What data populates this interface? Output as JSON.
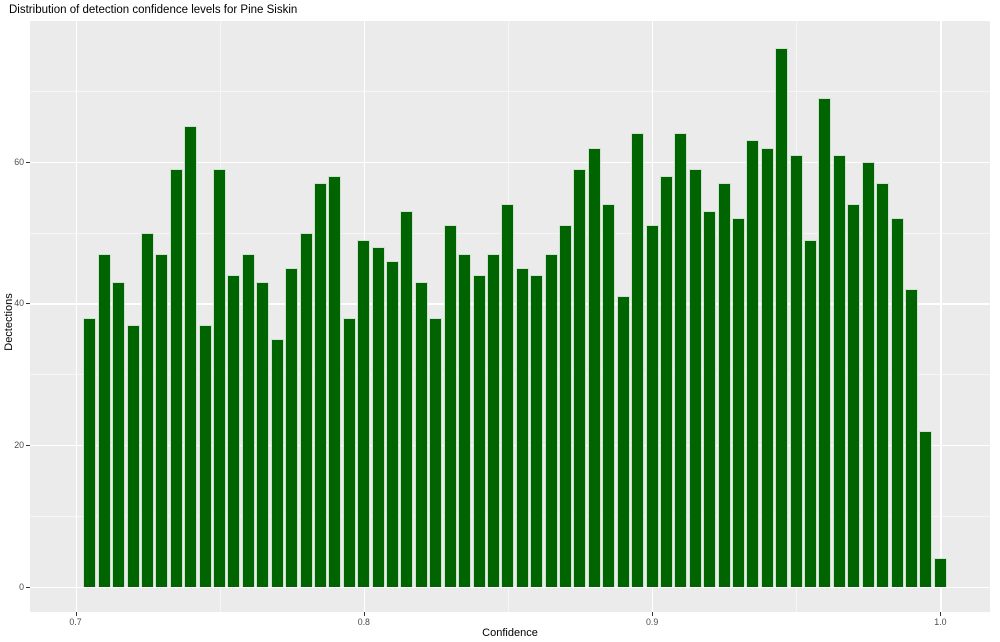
{
  "title": "Distribution of detection confidence levels for Pine Siskin",
  "chart_data": {
    "type": "bar",
    "subtype": "histogram",
    "title": "Distribution of detection confidence levels for Pine Siskin",
    "xlabel": "Confidence",
    "ylabel": "Dectections",
    "bin_start": 0.7027,
    "bin_width": 0.005,
    "values": [
      38,
      47,
      43,
      37,
      50,
      47,
      59,
      65,
      37,
      59,
      44,
      47,
      43,
      35,
      45,
      50,
      57,
      58,
      38,
      49,
      48,
      46,
      53,
      43,
      38,
      51,
      47,
      44,
      47,
      54,
      45,
      44,
      47,
      51,
      59,
      62,
      54,
      41,
      64,
      51,
      58,
      64,
      59,
      53,
      57,
      52,
      63,
      62,
      76,
      61,
      49,
      69,
      61,
      54,
      60,
      57,
      52,
      42,
      22,
      4
    ],
    "xlim": [
      0.6842,
      1.0172
    ],
    "ylim": [
      -3.57,
      79.86
    ],
    "x_ticks": [
      {
        "v": 0.7,
        "label": "0.7"
      },
      {
        "v": 0.8,
        "label": "0.8"
      },
      {
        "v": 0.9,
        "label": "0.9"
      },
      {
        "v": 1.0,
        "label": "1.0"
      }
    ],
    "y_ticks": [
      {
        "v": 0,
        "label": "0"
      },
      {
        "v": 20,
        "label": "20"
      },
      {
        "v": 40,
        "label": "40"
      },
      {
        "v": 60,
        "label": "60"
      }
    ],
    "x_minor": [
      0.75,
      0.85,
      0.95
    ],
    "y_minor": [
      10,
      30,
      50,
      70
    ],
    "legend": null,
    "grid": "on",
    "colors": {
      "bar_fill": "#006400",
      "bar_edge": "#cfe2cf",
      "panel_bg": "#ebebeb",
      "grid": "#ffffff",
      "tick_label": "#4d4d4d",
      "text": "#000000",
      "background": "#ffffff"
    }
  }
}
